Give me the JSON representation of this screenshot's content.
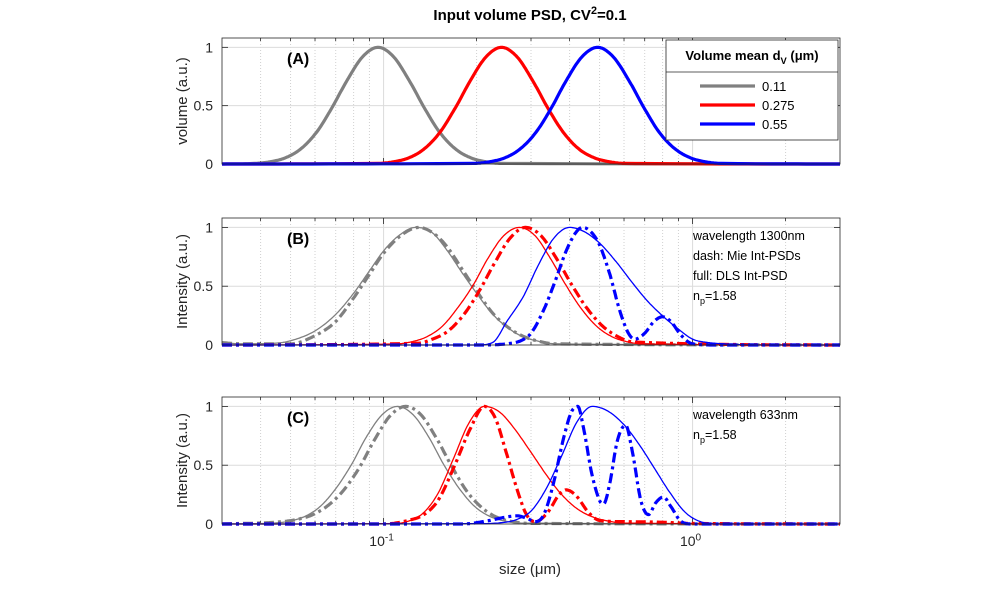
{
  "chart_data": [
    {
      "type": "line",
      "title": "Input volume PSD, CV^{2}=0.1",
      "panel_label": "(A)",
      "ylabel": "volume (a.u.)",
      "xscale": "log",
      "xlim": [
        0.03,
        3
      ],
      "ylim": [
        0,
        1.08
      ],
      "yticks": [
        0,
        0.5,
        1
      ],
      "ytick_labels": [
        "0",
        "0.5",
        "1"
      ],
      "grid": true,
      "legend": {
        "title": "Volume mean d_{V} (μm)",
        "placement": "top-right",
        "entries": [
          "0.11",
          "0.275",
          "0.55"
        ]
      },
      "annotations": [],
      "series": [
        {
          "name": "0.11",
          "color": "#808080",
          "style": "solid-thick",
          "x": [
            0.03,
            0.0382,
            0.0429,
            0.0481,
            0.054,
            0.0606,
            0.068,
            0.0763,
            0.0856,
            0.096,
            0.1077,
            0.1208,
            0.1356,
            0.1521,
            0.1707,
            0.1915,
            0.2149,
            0.2411,
            3
          ],
          "y": [
            0,
            0.005,
            0.019,
            0.053,
            0.13,
            0.27,
            0.48,
            0.72,
            0.92,
            1,
            0.92,
            0.72,
            0.48,
            0.27,
            0.13,
            0.053,
            0.019,
            0.005,
            0
          ]
        },
        {
          "name": "0.275",
          "color": "#ff0000",
          "style": "solid-thick",
          "x": [
            0.03,
            0.0959,
            0.1077,
            0.1208,
            0.1355,
            0.152,
            0.1706,
            0.1914,
            0.2148,
            0.241,
            0.27,
            0.303,
            0.34,
            0.382,
            0.428,
            0.481,
            0.539,
            0.605,
            3
          ],
          "y": [
            0,
            0.005,
            0.019,
            0.053,
            0.13,
            0.27,
            0.48,
            0.72,
            0.92,
            1,
            0.92,
            0.72,
            0.48,
            0.27,
            0.13,
            0.053,
            0.019,
            0.005,
            0
          ]
        },
        {
          "name": "0.55",
          "color": "#0000ff",
          "style": "solid-thick",
          "x": [
            0.03,
            0.196,
            0.22,
            0.247,
            0.277,
            0.311,
            0.349,
            0.391,
            0.439,
            0.493,
            0.553,
            0.621,
            0.697,
            0.781,
            0.877,
            0.984,
            1.1,
            1.24,
            3
          ],
          "y": [
            0,
            0.005,
            0.019,
            0.053,
            0.13,
            0.27,
            0.48,
            0.72,
            0.92,
            1,
            0.92,
            0.72,
            0.48,
            0.27,
            0.13,
            0.053,
            0.019,
            0.005,
            0
          ]
        }
      ]
    },
    {
      "type": "line",
      "panel_label": "(B)",
      "ylabel": "Intensity (a.u.)",
      "xscale": "log",
      "xlim": [
        0.03,
        3
      ],
      "ylim": [
        0,
        1.08
      ],
      "yticks": [
        0,
        0.5,
        1
      ],
      "ytick_labels": [
        "0",
        "0.5",
        "1"
      ],
      "grid": true,
      "annotations": [
        "wavelength 1300nm",
        "dash: Mie Int-PSDs",
        "full:   DLS Int-PSD",
        "n_{p}=1.58"
      ],
      "series": [
        {
          "color": "#808080",
          "style": "solid-thin",
          "x": [
            0.03,
            0.035,
            0.045,
            0.05,
            0.06,
            0.07,
            0.08,
            0.09,
            0.1,
            0.112,
            0.127,
            0.143,
            0.16,
            0.18,
            0.2,
            0.224,
            0.25,
            0.28,
            0.32,
            0.36,
            3
          ],
          "y": [
            0.02,
            0.01,
            0.016,
            0.036,
            0.12,
            0.26,
            0.44,
            0.63,
            0.8,
            0.93,
            1,
            0.96,
            0.81,
            0.61,
            0.44,
            0.27,
            0.155,
            0.075,
            0.03,
            0.01,
            0
          ]
        },
        {
          "color": "#808080",
          "style": "dashdot-thick",
          "x": [
            0.03,
            0.035,
            0.05,
            0.06,
            0.07,
            0.08,
            0.09,
            0.1,
            0.115,
            0.13,
            0.145,
            0.16,
            0.18,
            0.2,
            0.224,
            0.25,
            0.28,
            0.32,
            0.36,
            3
          ],
          "y": [
            0.02,
            0.01,
            0.01,
            0.08,
            0.2,
            0.4,
            0.6,
            0.78,
            0.94,
            1,
            0.95,
            0.84,
            0.64,
            0.46,
            0.28,
            0.16,
            0.08,
            0.03,
            0.01,
            0
          ]
        },
        {
          "color": "#ff0000",
          "style": "solid-thin",
          "x": [
            0.03,
            0.11,
            0.123,
            0.138,
            0.155,
            0.173,
            0.195,
            0.218,
            0.245,
            0.275,
            0.309,
            0.346,
            0.389,
            0.436,
            0.489,
            0.549,
            0.616,
            0.691,
            3
          ],
          "y": [
            0,
            0.009,
            0.027,
            0.07,
            0.16,
            0.31,
            0.51,
            0.74,
            0.93,
            1,
            0.93,
            0.74,
            0.51,
            0.31,
            0.16,
            0.07,
            0.027,
            0.009,
            0
          ]
        },
        {
          "color": "#ff0000",
          "style": "dashdot-thick",
          "x": [
            0.03,
            0.129,
            0.144,
            0.162,
            0.182,
            0.204,
            0.229,
            0.257,
            0.288,
            0.323,
            0.362,
            0.407,
            0.456,
            0.512,
            0.574,
            0.644,
            3
          ],
          "y": [
            0,
            0.015,
            0.05,
            0.12,
            0.26,
            0.46,
            0.7,
            0.91,
            1,
            0.93,
            0.74,
            0.51,
            0.31,
            0.16,
            0.07,
            0.025,
            0
          ]
        },
        {
          "color": "#0000ff",
          "style": "solid-thin",
          "x": [
            0.03,
            0.2,
            0.225,
            0.252,
            0.283,
            0.317,
            0.356,
            0.4,
            0.449,
            0.503,
            0.565,
            0.634,
            0.711,
            0.798,
            0.895,
            1.0,
            1.13,
            1.26,
            1.6,
            3
          ],
          "y": [
            0,
            0,
            0.02,
            0.21,
            0.41,
            0.68,
            0.91,
            1,
            0.96,
            0.86,
            0.71,
            0.54,
            0.38,
            0.25,
            0.14,
            0.05,
            0.02,
            0.01,
            0,
            0
          ]
        },
        {
          "color": "#0000ff",
          "style": "dashdot-thick",
          "x": [
            0.03,
            0.2,
            0.25,
            0.28,
            0.3,
            0.33,
            0.36,
            0.39,
            0.42,
            0.44,
            0.47,
            0.5,
            0.54,
            0.58,
            0.62,
            0.65,
            0.7,
            0.75,
            0.8,
            0.85,
            0.92,
            1.0,
            1.2,
            3
          ],
          "y": [
            0,
            0,
            0.01,
            0.04,
            0.1,
            0.3,
            0.55,
            0.8,
            0.96,
            1,
            0.96,
            0.85,
            0.6,
            0.3,
            0.1,
            0.05,
            0.1,
            0.2,
            0.24,
            0.2,
            0.08,
            0.01,
            0,
            0
          ]
        }
      ]
    },
    {
      "type": "line",
      "panel_label": "(C)",
      "ylabel": "Intensity (a.u.)",
      "xlabel": "size (μm)",
      "xscale": "log",
      "xlim": [
        0.03,
        3
      ],
      "ylim": [
        0,
        1.08
      ],
      "yticks": [
        0,
        0.5,
        1
      ],
      "ytick_labels": [
        "0",
        "0.5",
        "1"
      ],
      "xticks": [
        0.1,
        1
      ],
      "xtick_labels": [
        "10^{-1}",
        "10^{0}"
      ],
      "grid": true,
      "annotations": [
        "wavelength 633nm",
        "n_{p}=1.58"
      ],
      "series": [
        {
          "color": "#808080",
          "style": "solid-thin",
          "x": [
            0.03,
            0.0442,
            0.0496,
            0.0556,
            0.0624,
            0.07,
            0.0785,
            0.088,
            0.099,
            0.111,
            0.1245,
            0.14,
            0.157,
            0.176,
            0.197,
            0.221,
            0.248,
            0.279,
            3
          ],
          "y": [
            0,
            0.008,
            0.024,
            0.064,
            0.15,
            0.3,
            0.5,
            0.74,
            0.93,
            1,
            0.93,
            0.74,
            0.5,
            0.3,
            0.15,
            0.064,
            0.024,
            0.008,
            0
          ]
        },
        {
          "color": "#808080",
          "style": "dashdot-thick",
          "x": [
            0.03,
            0.047,
            0.0527,
            0.0591,
            0.0663,
            0.0744,
            0.0835,
            0.0937,
            0.105,
            0.118,
            0.132,
            0.149,
            0.167,
            0.187,
            0.21,
            0.236,
            0.265,
            0.297,
            3
          ],
          "y": [
            0,
            0.02,
            0.04,
            0.08,
            0.16,
            0.29,
            0.48,
            0.72,
            0.92,
            1,
            0.93,
            0.72,
            0.48,
            0.27,
            0.13,
            0.05,
            0.018,
            0.005,
            0
          ]
        },
        {
          "color": "#ff0000",
          "style": "solid-thin",
          "x": [
            0.03,
            0.106,
            0.119,
            0.134,
            0.15,
            0.168,
            0.189,
            0.212,
            0.238,
            0.267,
            0.3,
            0.336,
            0.377,
            0.423,
            0.475,
            0.533,
            0.6,
            3
          ],
          "y": [
            0,
            0.003,
            0.02,
            0.09,
            0.26,
            0.55,
            0.86,
            1,
            0.95,
            0.8,
            0.61,
            0.42,
            0.25,
            0.13,
            0.06,
            0.025,
            0.008,
            0
          ]
        },
        {
          "color": "#ff0000",
          "style": "dashdot-thick",
          "x": [
            0.03,
            0.1,
            0.12,
            0.135,
            0.15,
            0.17,
            0.19,
            0.212,
            0.23,
            0.25,
            0.27,
            0.29,
            0.31,
            0.34,
            0.37,
            0.39,
            0.42,
            0.46,
            0.5,
            0.6,
            0.8,
            1.0,
            3
          ],
          "y": [
            0,
            0,
            0.03,
            0.08,
            0.2,
            0.5,
            0.8,
            1,
            0.9,
            0.6,
            0.3,
            0.08,
            0.02,
            0.1,
            0.25,
            0.29,
            0.24,
            0.1,
            0.03,
            0.02,
            0.015,
            0.005,
            0
          ]
        },
        {
          "color": "#0000ff",
          "style": "solid-thin",
          "x": [
            0.03,
            0.2,
            0.238,
            0.267,
            0.3,
            0.336,
            0.377,
            0.423,
            0.474,
            0.532,
            0.597,
            0.67,
            0.75,
            0.843,
            0.946,
            1.06,
            1.2,
            3
          ],
          "y": [
            0,
            0.003,
            0.01,
            0.034,
            0.11,
            0.3,
            0.58,
            0.87,
            1,
            0.96,
            0.85,
            0.68,
            0.48,
            0.27,
            0.1,
            0.02,
            0,
            0
          ]
        },
        {
          "color": "#0000ff",
          "style": "dashdot-thick",
          "x": [
            0.03,
            0.18,
            0.22,
            0.25,
            0.27,
            0.29,
            0.31,
            0.33,
            0.355,
            0.38,
            0.405,
            0.425,
            0.445,
            0.47,
            0.5,
            0.515,
            0.54,
            0.57,
            0.607,
            0.64,
            0.68,
            0.72,
            0.76,
            0.805,
            0.85,
            0.92,
            1.0,
            3
          ],
          "y": [
            0,
            0,
            0.03,
            0.06,
            0.07,
            0.05,
            0.02,
            0.08,
            0.35,
            0.7,
            0.95,
            1,
            0.8,
            0.45,
            0.2,
            0.17,
            0.35,
            0.7,
            0.84,
            0.6,
            0.2,
            0.08,
            0.18,
            0.23,
            0.15,
            0.02,
            0,
            0
          ]
        }
      ]
    }
  ]
}
